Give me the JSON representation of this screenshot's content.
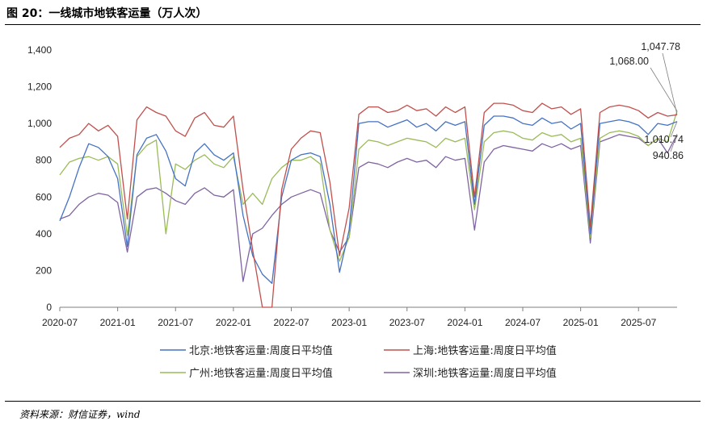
{
  "header": {
    "title": "图 20：一线城市地铁客运量（万人次）"
  },
  "footer": {
    "source": "资料来源：财信证券，wind"
  },
  "chart_data": {
    "type": "line",
    "title": "",
    "xlabel": "",
    "ylabel": "",
    "ylim": [
      0,
      1400
    ],
    "yticks": [
      "0",
      "200",
      "400",
      "600",
      "800",
      "1,000",
      "1,200",
      "1,400"
    ],
    "xticks": [
      "2020-07",
      "2021-01",
      "2021-07",
      "2022-01",
      "2022-07",
      "2023-01",
      "2023-07",
      "2024-01",
      "2024-07",
      "2025-01",
      "2025-07"
    ],
    "x_start": "2020-07",
    "x_end": "2025-11",
    "grid": false,
    "legend": "bottom",
    "colors": {
      "beijing": "#4472c4",
      "shanghai": "#c0504d",
      "guangzhou": "#9bbb59",
      "shenzhen": "#8064a2"
    },
    "series": [
      {
        "key": "beijing",
        "name": "北京:地铁客运量:周度日平均值",
        "x": [
          "2020-07",
          "2020-08",
          "2020-09",
          "2020-10",
          "2020-11",
          "2020-12",
          "2021-01",
          "2021-02",
          "2021-03",
          "2021-04",
          "2021-05",
          "2021-06",
          "2021-07",
          "2021-08",
          "2021-09",
          "2021-10",
          "2021-11",
          "2021-12",
          "2022-01",
          "2022-02",
          "2022-03",
          "2022-04",
          "2022-05",
          "2022-06",
          "2022-07",
          "2022-08",
          "2022-09",
          "2022-10",
          "2022-11",
          "2022-12",
          "2023-01",
          "2023-02",
          "2023-03",
          "2023-04",
          "2023-05",
          "2023-06",
          "2023-07",
          "2023-08",
          "2023-09",
          "2023-10",
          "2023-11",
          "2023-12",
          "2024-01",
          "2024-02",
          "2024-03",
          "2024-04",
          "2024-05",
          "2024-06",
          "2024-07",
          "2024-08",
          "2024-09",
          "2024-10",
          "2024-11",
          "2024-12",
          "2025-01",
          "2025-02",
          "2025-03",
          "2025-04",
          "2025-05",
          "2025-06",
          "2025-07",
          "2025-08",
          "2025-09",
          "2025-10",
          "2025-11"
        ],
        "values": [
          470,
          600,
          760,
          890,
          870,
          820,
          700,
          330,
          830,
          920,
          940,
          850,
          700,
          660,
          840,
          890,
          830,
          800,
          840,
          500,
          280,
          180,
          130,
          600,
          800,
          830,
          840,
          820,
          560,
          190,
          420,
          1000,
          1010,
          1010,
          980,
          1000,
          1020,
          980,
          1000,
          960,
          1010,
          990,
          1010,
          560,
          990,
          1040,
          1040,
          1030,
          1000,
          990,
          1030,
          1000,
          1010,
          970,
          1000,
          400,
          1000,
          1010,
          1020,
          1010,
          990,
          940,
          1000,
          990,
          1010.74
        ]
      },
      {
        "key": "shanghai",
        "name": "上海:地铁客运量:周度日平均值",
        "x": [
          "2020-07",
          "2020-08",
          "2020-09",
          "2020-10",
          "2020-11",
          "2020-12",
          "2021-01",
          "2021-02",
          "2021-03",
          "2021-04",
          "2021-05",
          "2021-06",
          "2021-07",
          "2021-08",
          "2021-09",
          "2021-10",
          "2021-11",
          "2021-12",
          "2022-01",
          "2022-02",
          "2022-03",
          "2022-04",
          "2022-05",
          "2022-06",
          "2022-07",
          "2022-08",
          "2022-09",
          "2022-10",
          "2022-11",
          "2022-12",
          "2023-01",
          "2023-02",
          "2023-03",
          "2023-04",
          "2023-05",
          "2023-06",
          "2023-07",
          "2023-08",
          "2023-09",
          "2023-10",
          "2023-11",
          "2023-12",
          "2024-01",
          "2024-02",
          "2024-03",
          "2024-04",
          "2024-05",
          "2024-06",
          "2024-07",
          "2024-08",
          "2024-09",
          "2024-10",
          "2024-11",
          "2024-12",
          "2025-01",
          "2025-02",
          "2025-03",
          "2025-04",
          "2025-05",
          "2025-06",
          "2025-07",
          "2025-08",
          "2025-09",
          "2025-10",
          "2025-11"
        ],
        "values": [
          870,
          920,
          940,
          1000,
          960,
          990,
          930,
          480,
          1020,
          1090,
          1060,
          1040,
          960,
          930,
          1030,
          1060,
          990,
          980,
          1040,
          640,
          310,
          0,
          0,
          640,
          860,
          920,
          960,
          950,
          680,
          280,
          540,
          1050,
          1090,
          1090,
          1060,
          1070,
          1100,
          1070,
          1080,
          1040,
          1090,
          1060,
          1090,
          600,
          1060,
          1110,
          1110,
          1100,
          1070,
          1060,
          1110,
          1080,
          1090,
          1050,
          1080,
          440,
          1060,
          1090,
          1100,
          1090,
          1070,
          1030,
          1060,
          1040,
          1047.78
        ]
      },
      {
        "key": "guangzhou",
        "name": "广州:地铁客运量:周度日平均值",
        "x": [
          "2020-07",
          "2020-08",
          "2020-09",
          "2020-10",
          "2020-11",
          "2020-12",
          "2021-01",
          "2021-02",
          "2021-03",
          "2021-04",
          "2021-05",
          "2021-06",
          "2021-07",
          "2021-08",
          "2021-09",
          "2021-10",
          "2021-11",
          "2021-12",
          "2022-01",
          "2022-02",
          "2022-03",
          "2022-04",
          "2022-05",
          "2022-06",
          "2022-07",
          "2022-08",
          "2022-09",
          "2022-10",
          "2022-11",
          "2022-12",
          "2023-01",
          "2023-02",
          "2023-03",
          "2023-04",
          "2023-05",
          "2023-06",
          "2023-07",
          "2023-08",
          "2023-09",
          "2023-10",
          "2023-11",
          "2023-12",
          "2024-01",
          "2024-02",
          "2024-03",
          "2024-04",
          "2024-05",
          "2024-06",
          "2024-07",
          "2024-08",
          "2024-09",
          "2024-10",
          "2024-11",
          "2024-12",
          "2025-01",
          "2025-02",
          "2025-03",
          "2025-04",
          "2025-05",
          "2025-06",
          "2025-07",
          "2025-08",
          "2025-09",
          "2025-10",
          "2025-11"
        ],
        "values": [
          720,
          790,
          810,
          820,
          800,
          820,
          780,
          390,
          820,
          880,
          910,
          400,
          780,
          750,
          800,
          830,
          780,
          760,
          820,
          560,
          620,
          560,
          700,
          760,
          800,
          800,
          820,
          780,
          420,
          250,
          380,
          860,
          910,
          900,
          880,
          900,
          920,
          910,
          900,
          870,
          920,
          900,
          920,
          530,
          900,
          950,
          960,
          950,
          920,
          910,
          950,
          930,
          940,
          900,
          920,
          380,
          920,
          950,
          960,
          950,
          930,
          880,
          920,
          900,
          1068.0
        ]
      },
      {
        "key": "shenzhen",
        "name": "深圳:地铁客运量:周度日平均值",
        "x": [
          "2020-07",
          "2020-08",
          "2020-09",
          "2020-10",
          "2020-11",
          "2020-12",
          "2021-01",
          "2021-02",
          "2021-03",
          "2021-04",
          "2021-05",
          "2021-06",
          "2021-07",
          "2021-08",
          "2021-09",
          "2021-10",
          "2021-11",
          "2021-12",
          "2022-01",
          "2022-02",
          "2022-03",
          "2022-04",
          "2022-05",
          "2022-06",
          "2022-07",
          "2022-08",
          "2022-09",
          "2022-10",
          "2022-11",
          "2022-12",
          "2023-01",
          "2023-02",
          "2023-03",
          "2023-04",
          "2023-05",
          "2023-06",
          "2023-07",
          "2023-08",
          "2023-09",
          "2023-10",
          "2023-11",
          "2023-12",
          "2024-01",
          "2024-02",
          "2024-03",
          "2024-04",
          "2024-05",
          "2024-06",
          "2024-07",
          "2024-08",
          "2024-09",
          "2024-10",
          "2024-11",
          "2024-12",
          "2025-01",
          "2025-02",
          "2025-03",
          "2025-04",
          "2025-05",
          "2025-06",
          "2025-07",
          "2025-08",
          "2025-09",
          "2025-10",
          "2025-11"
        ],
        "values": [
          480,
          500,
          560,
          600,
          620,
          610,
          570,
          300,
          600,
          640,
          650,
          620,
          580,
          560,
          620,
          650,
          610,
          600,
          640,
          140,
          400,
          430,
          500,
          560,
          600,
          620,
          640,
          620,
          420,
          300,
          380,
          760,
          790,
          780,
          760,
          790,
          810,
          790,
          800,
          760,
          820,
          800,
          810,
          420,
          790,
          860,
          880,
          870,
          860,
          850,
          890,
          870,
          890,
          860,
          880,
          350,
          900,
          920,
          940,
          930,
          920,
          880,
          920,
          840,
          940.86
        ]
      }
    ],
    "annotations": [
      {
        "label": "1,047.78",
        "series": "shanghai"
      },
      {
        "label": "1,068.00",
        "series": "guangzhou"
      },
      {
        "label": "1,010.74",
        "series": "beijing"
      },
      {
        "label": "940.86",
        "series": "shenzhen"
      }
    ]
  }
}
